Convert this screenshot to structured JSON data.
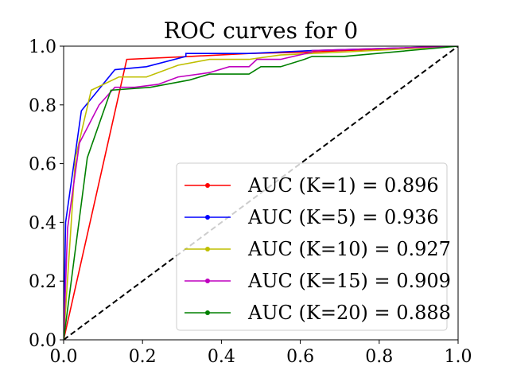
{
  "chart_data": {
    "type": "line",
    "title": "ROC curves for 0",
    "xlabel": "",
    "ylabel": "",
    "xlim": [
      0.0,
      1.0
    ],
    "ylim": [
      0.0,
      1.0
    ],
    "xticks": [
      "0.0",
      "0.2",
      "0.4",
      "0.6",
      "0.8",
      "1.0"
    ],
    "yticks": [
      "0.0",
      "0.2",
      "0.4",
      "0.6",
      "0.8",
      "1.0"
    ],
    "grid": false,
    "legend_position": "lower-right",
    "diagonal": {
      "x": [
        0,
        1
      ],
      "y": [
        0,
        1
      ],
      "color": "#000000",
      "style": "dashed"
    },
    "series": [
      {
        "name": "AUC (K=1) = 0.896",
        "color": "#ff0000",
        "x": [
          0.0,
          0.16,
          0.32,
          0.47,
          0.63,
          0.71,
          1.0
        ],
        "y": [
          0.0,
          0.955,
          0.965,
          0.975,
          0.98,
          0.985,
          1.0
        ]
      },
      {
        "name": "AUC (K=5) = 0.936",
        "color": "#0000ff",
        "x": [
          0.0,
          0.005,
          0.045,
          0.13,
          0.21,
          0.31,
          0.31,
          0.47,
          0.63,
          1.0
        ],
        "y": [
          0.0,
          0.4,
          0.78,
          0.92,
          0.93,
          0.965,
          0.975,
          0.975,
          0.985,
          1.0
        ]
      },
      {
        "name": "AUC (K=10) = 0.927",
        "color": "#bfbf00",
        "x": [
          0.0,
          0.03,
          0.07,
          0.14,
          0.21,
          0.29,
          0.37,
          0.47,
          0.55,
          0.71,
          1.0
        ],
        "y": [
          0.0,
          0.62,
          0.85,
          0.895,
          0.895,
          0.935,
          0.955,
          0.955,
          0.97,
          0.98,
          1.0
        ]
      },
      {
        "name": "AUC (K=15) = 0.909",
        "color": "#bf00bf",
        "x": [
          0.0,
          0.01,
          0.04,
          0.09,
          0.13,
          0.18,
          0.24,
          0.29,
          0.37,
          0.42,
          0.47,
          0.49,
          0.55,
          0.63,
          0.63,
          1.0
        ],
        "y": [
          0.0,
          0.38,
          0.67,
          0.8,
          0.86,
          0.86,
          0.87,
          0.895,
          0.91,
          0.93,
          0.93,
          0.955,
          0.955,
          0.98,
          0.985,
          1.0
        ]
      },
      {
        "name": "AUC (K=20) = 0.888",
        "color": "#008000",
        "x": [
          0.0,
          0.06,
          0.12,
          0.22,
          0.32,
          0.37,
          0.47,
          0.5,
          0.55,
          0.61,
          0.63,
          0.71,
          1.0
        ],
        "y": [
          0.0,
          0.62,
          0.85,
          0.86,
          0.885,
          0.905,
          0.905,
          0.93,
          0.93,
          0.955,
          0.965,
          0.965,
          1.0
        ]
      }
    ]
  }
}
